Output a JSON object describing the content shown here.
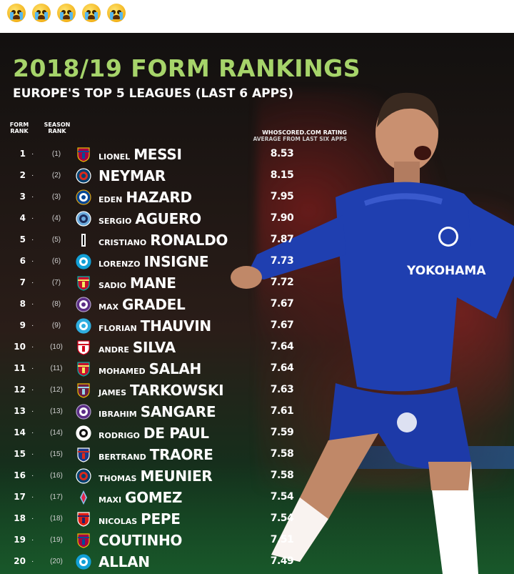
{
  "emojis": [
    "loudly-crying-face",
    "loudly-crying-face",
    "loudly-crying-face",
    "loudly-crying-face",
    "loudly-crying-face"
  ],
  "poster": {
    "title": "2018/19 FORM RANKINGS",
    "subtitle": "EUROPE'S TOP 5 LEAGUES (LAST 6 APPS)",
    "headers": {
      "form_rank": "FORM\nRANK",
      "season_rank": "SEASON\nRANK",
      "rating": "WHOSCORED.COM RATING",
      "rating_sub": "AVERAGE FROM LAST SIX APPS"
    },
    "sponsor_text": "YOKOHAMA",
    "players": [
      {
        "rank": "1",
        "season": "(1)",
        "first": "Lionel",
        "last": "MESSI",
        "rating": "8.53",
        "club_icon": "barcelona-badge"
      },
      {
        "rank": "2",
        "season": "(2)",
        "first": "",
        "last": "NEYMAR",
        "rating": "8.15",
        "club_icon": "psg-badge"
      },
      {
        "rank": "3",
        "season": "(3)",
        "first": "Eden",
        "last": "HAZARD",
        "rating": "7.95",
        "club_icon": "chelsea-badge"
      },
      {
        "rank": "4",
        "season": "(4)",
        "first": "Sergio",
        "last": "AGUERO",
        "rating": "7.90",
        "club_icon": "man-city-badge"
      },
      {
        "rank": "5",
        "season": "(5)",
        "first": "Cristiano",
        "last": "RONALDO",
        "rating": "7.87",
        "club_icon": "juventus-badge"
      },
      {
        "rank": "6",
        "season": "(6)",
        "first": "Lorenzo",
        "last": "INSIGNE",
        "rating": "7.73",
        "club_icon": "napoli-badge"
      },
      {
        "rank": "7",
        "season": "(7)",
        "first": "Sadio",
        "last": "MANE",
        "rating": "7.72",
        "club_icon": "liverpool-badge"
      },
      {
        "rank": "8",
        "season": "(8)",
        "first": "Max",
        "last": "GRADEL",
        "rating": "7.67",
        "club_icon": "toulouse-badge"
      },
      {
        "rank": "9",
        "season": "(9)",
        "first": "Florian",
        "last": "THAUVIN",
        "rating": "7.67",
        "club_icon": "marseille-badge"
      },
      {
        "rank": "10",
        "season": "(10)",
        "first": "Andre",
        "last": "SILVA",
        "rating": "7.64",
        "club_icon": "sevilla-badge"
      },
      {
        "rank": "11",
        "season": "(11)",
        "first": "Mohamed",
        "last": "SALAH",
        "rating": "7.64",
        "club_icon": "liverpool-badge"
      },
      {
        "rank": "12",
        "season": "(12)",
        "first": "James",
        "last": "TARKOWSKI",
        "rating": "7.63",
        "club_icon": "burnley-badge"
      },
      {
        "rank": "13",
        "season": "(13)",
        "first": "Ibrahim",
        "last": "SANGARE",
        "rating": "7.61",
        "club_icon": "toulouse-badge"
      },
      {
        "rank": "14",
        "season": "(14)",
        "first": "Rodrigo",
        "last": "DE PAUL",
        "rating": "7.59",
        "club_icon": "udinese-badge"
      },
      {
        "rank": "15",
        "season": "(15)",
        "first": "Bertrand",
        "last": "TRAORE",
        "rating": "7.58",
        "club_icon": "lyon-badge"
      },
      {
        "rank": "16",
        "season": "(16)",
        "first": "Thomas",
        "last": "MEUNIER",
        "rating": "7.58",
        "club_icon": "psg-badge"
      },
      {
        "rank": "17",
        "season": "(17)",
        "first": "Maxi",
        "last": "GOMEZ",
        "rating": "7.54",
        "club_icon": "celta-badge"
      },
      {
        "rank": "18",
        "season": "(18)",
        "first": "Nicolas",
        "last": "PEPE",
        "rating": "7.54",
        "club_icon": "lille-badge"
      },
      {
        "rank": "19",
        "season": "(19)",
        "first": "",
        "last": "COUTINHO",
        "rating": "7.51",
        "club_icon": "barcelona-badge"
      },
      {
        "rank": "20",
        "season": "(20)",
        "first": "",
        "last": "ALLAN",
        "rating": "7.49",
        "club_icon": "napoli-badge"
      }
    ]
  },
  "colors": {
    "title_green": "#a6d46a",
    "chelsea_blue": "#1f3fb0",
    "text_white": "#ffffff"
  }
}
